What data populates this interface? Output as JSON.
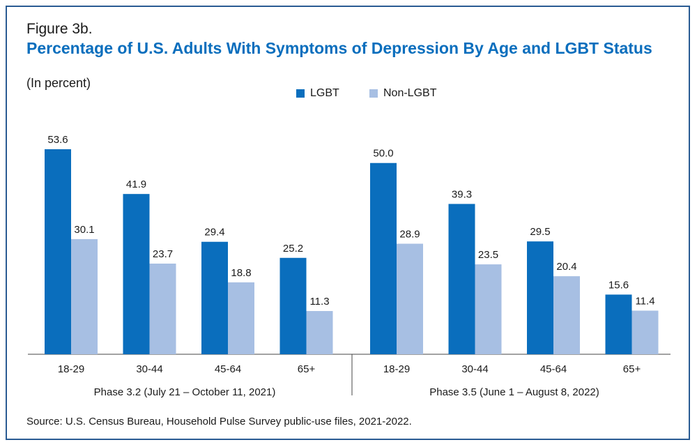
{
  "figure_label": "Figure 3b.",
  "title": "Percentage of U.S. Adults With Symptoms of Depression By Age and LGBT Status",
  "subtitle": "(In percent)",
  "source": "Source: U.S. Census Bureau, Household Pulse Survey public-use files, 2021-2022.",
  "colors": {
    "lgbt": "#0a6ebd",
    "non_lgbt": "#a7bfe3",
    "title": "#0a6ebd",
    "border": "#2a5b93"
  },
  "chart_data": {
    "type": "bar",
    "title": "Percentage of U.S. Adults With Symptoms of Depression By Age and LGBT Status",
    "ylabel": "",
    "legend": [
      "LGBT",
      "Non-LGBT"
    ],
    "legend_position": "top-center",
    "grid": false,
    "groups": [
      {
        "label": "Phase 3.2 (July 21 – October 11, 2021)",
        "categories": [
          "18-29",
          "30-44",
          "45-64",
          "65+"
        ],
        "series": [
          {
            "name": "LGBT",
            "values": [
              53.6,
              41.9,
              29.4,
              25.2
            ]
          },
          {
            "name": "Non-LGBT",
            "values": [
              30.1,
              23.7,
              18.8,
              11.3
            ]
          }
        ]
      },
      {
        "label": "Phase 3.5 (June 1 – August 8, 2022)",
        "categories": [
          "18-29",
          "30-44",
          "45-64",
          "65+"
        ],
        "series": [
          {
            "name": "LGBT",
            "values": [
              50.0,
              39.3,
              29.5,
              15.6
            ]
          },
          {
            "name": "Non-LGBT",
            "values": [
              28.9,
              23.5,
              20.4,
              11.4
            ]
          }
        ]
      }
    ],
    "ylim": [
      0,
      55
    ]
  }
}
